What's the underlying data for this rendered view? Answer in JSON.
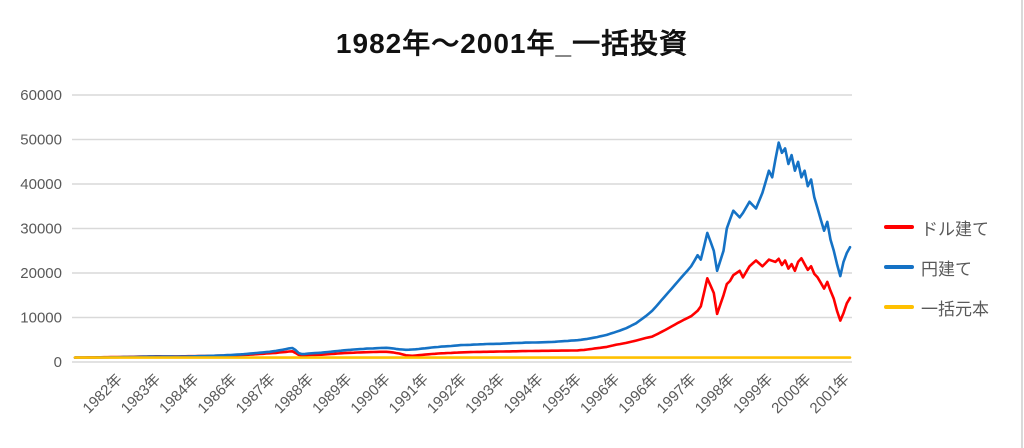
{
  "chart_data": {
    "type": "line",
    "title": "1982年～2001年_一括投資",
    "ylim": [
      0,
      60000
    ],
    "yticks": [
      0,
      10000,
      20000,
      30000,
      40000,
      50000,
      60000
    ],
    "grid": true,
    "legend_position": "right",
    "xlabels": [
      "1982年",
      "1983年",
      "1984年",
      "1986年",
      "1987年",
      "1988年",
      "1989年",
      "1990年",
      "1991年",
      "1992年",
      "1993年",
      "1994年",
      "1995年",
      "1996年",
      "1996年",
      "1997年",
      "1998年",
      "1999年",
      "2000年",
      "2001年"
    ],
    "colors": {
      "grid": "#d9d9d9",
      "axis_text": "#595959",
      "title_text": "#111111",
      "border": "#d9d9d9"
    },
    "series": [
      {
        "key": "dollar",
        "name": "ドル建て",
        "color": "#ff0000",
        "values": [
          1000,
          1008,
          1020,
          1012,
          1025,
          1030,
          1042,
          1055,
          1065,
          1072,
          1080,
          1092,
          1100,
          1110,
          1122,
          1135,
          1150,
          1162,
          1175,
          1190,
          1208,
          1225,
          1240,
          1255,
          1268,
          1280,
          1275,
          1268,
          1260,
          1255,
          1250,
          1258,
          1268,
          1280,
          1290,
          1300,
          1305,
          1310,
          1322,
          1335,
          1350,
          1365,
          1382,
          1400,
          1412,
          1425,
          1440,
          1460,
          1480,
          1500,
          1525,
          1550,
          1580,
          1618,
          1658,
          1700,
          1748,
          1798,
          1850,
          1900,
          1950,
          2000,
          2050,
          2125,
          2200,
          2275,
          2350,
          2400,
          2050,
          1600,
          1450,
          1500,
          1550,
          1575,
          1600,
          1625,
          1650,
          1700,
          1750,
          1800,
          1850,
          1900,
          1950,
          2000,
          2050,
          2075,
          2100,
          2125,
          2150,
          2175,
          2200,
          2225,
          2250,
          2275,
          2300,
          2300,
          2300,
          2225,
          2150,
          2025,
          1900,
          1700,
          1500,
          1450,
          1400,
          1465,
          1530,
          1600,
          1665,
          1730,
          1800,
          1850,
          1900,
          1950,
          1985,
          2015,
          2050,
          2085,
          2115,
          2150,
          2175,
          2200,
          2225,
          2250,
          2265,
          2280,
          2290,
          2300,
          2315,
          2325,
          2340,
          2350,
          2365,
          2375,
          2390,
          2400,
          2415,
          2425,
          2440,
          2450,
          2465,
          2475,
          2490,
          2500,
          2508,
          2515,
          2522,
          2530,
          2538,
          2545,
          2552,
          2560,
          2570,
          2580,
          2590,
          2600,
          2665,
          2730,
          2800,
          2900,
          3000,
          3100,
          3200,
          3300,
          3400,
          3565,
          3730,
          3900,
          4030,
          4165,
          4300,
          4465,
          4630,
          4800,
          5000,
          5200,
          5400,
          5550,
          5700,
          6065,
          6430,
          6800,
          7200,
          7600,
          8000,
          8400,
          8800,
          9200,
          9565,
          9930,
          10300,
          10900,
          11500,
          12500,
          15650,
          18800,
          17150,
          15500,
          10800,
          12900,
          15000,
          17500,
          18200,
          19500,
          20000,
          20500,
          19000,
          20250,
          21500,
          22150,
          22800,
          22150,
          21500,
          22250,
          23000,
          22750,
          22500,
          23200,
          21800,
          22800,
          21000,
          22000,
          20500,
          22500,
          23300,
          22000,
          20700,
          21500,
          19800,
          19000,
          17800,
          16500,
          18000,
          16000,
          14200,
          11500,
          9300,
          11000,
          13200,
          14400
        ]
      },
      {
        "key": "yen",
        "name": "円建て",
        "color": "#1572c5",
        "values": [
          1000,
          1005,
          1015,
          1008,
          1020,
          1010,
          1018,
          1030,
          1042,
          1035,
          1040,
          1052,
          1048,
          1060,
          1075,
          1090,
          1100,
          1115,
          1130,
          1150,
          1170,
          1185,
          1200,
          1215,
          1222,
          1230,
          1225,
          1215,
          1210,
          1218,
          1205,
          1200,
          1212,
          1228,
          1240,
          1255,
          1268,
          1280,
          1300,
          1320,
          1340,
          1365,
          1390,
          1420,
          1450,
          1480,
          1510,
          1545,
          1580,
          1620,
          1665,
          1710,
          1760,
          1820,
          1885,
          1950,
          2015,
          2085,
          2150,
          2225,
          2300,
          2400,
          2500,
          2620,
          2750,
          2900,
          3050,
          3150,
          2700,
          2000,
          1780,
          1820,
          1900,
          1950,
          2000,
          2050,
          2100,
          2175,
          2250,
          2325,
          2400,
          2475,
          2550,
          2625,
          2700,
          2750,
          2800,
          2850,
          2900,
          2950,
          3000,
          3025,
          3050,
          3100,
          3150,
          3175,
          3200,
          3120,
          3050,
          2950,
          2850,
          2800,
          2750,
          2775,
          2800,
          2865,
          2930,
          3000,
          3080,
          3165,
          3250,
          3315,
          3380,
          3450,
          3500,
          3550,
          3600,
          3665,
          3730,
          3800,
          3825,
          3850,
          3875,
          3900,
          3935,
          3975,
          4010,
          4050,
          4060,
          4075,
          4090,
          4100,
          4135,
          4175,
          4210,
          4250,
          4275,
          4300,
          4325,
          4350,
          4360,
          4375,
          4390,
          4400,
          4425,
          4450,
          4475,
          4500,
          4550,
          4600,
          4650,
          4700,
          4750,
          4800,
          4850,
          4900,
          5000,
          5100,
          5200,
          5330,
          5460,
          5600,
          5765,
          5930,
          6100,
          6330,
          6560,
          6800,
          7060,
          7330,
          7600,
          7960,
          8330,
          8700,
          9230,
          9760,
          10300,
          10900,
          11500,
          12300,
          13150,
          14000,
          14830,
          15660,
          16500,
          17330,
          18160,
          19000,
          19830,
          20660,
          21500,
          22750,
          24000,
          23000,
          26000,
          29000,
          27000,
          25000,
          20500,
          22750,
          25000,
          30000,
          32000,
          34000,
          33250,
          32500,
          33500,
          34750,
          36000,
          35250,
          34500,
          36250,
          38000,
          40500,
          43000,
          41500,
          45500,
          49300,
          47000,
          48000,
          44500,
          46500,
          43000,
          45000,
          41500,
          43000,
          39500,
          41000,
          37000,
          34500,
          32000,
          29500,
          31500,
          27500,
          25000,
          22000,
          19300,
          22500,
          24500,
          25800
        ]
      },
      {
        "key": "principal",
        "name": "一括元本",
        "color": "#ffc000",
        "constant": 1000
      }
    ]
  }
}
